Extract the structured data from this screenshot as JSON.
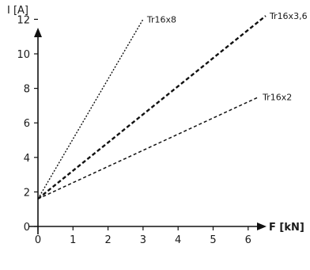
{
  "chart_data": {
    "type": "line",
    "xlabel": "F [kN]",
    "ylabel": "I [A]",
    "xlim": [
      0,
      6.5
    ],
    "ylim": [
      0,
      12.6
    ],
    "x_ticks": [
      "0",
      "1",
      "2",
      "3",
      "4",
      "5",
      "6"
    ],
    "y_ticks": [
      "0",
      "2",
      "4",
      "6",
      "8",
      "10",
      "12"
    ],
    "grid": false,
    "series": [
      {
        "name": "Tr16x8",
        "style": "dotted-thin",
        "points": [
          [
            0,
            1.6
          ],
          [
            3.0,
            12.0
          ]
        ]
      },
      {
        "name": "Tr16x3,6",
        "style": "dashed-bold",
        "points": [
          [
            0,
            1.6
          ],
          [
            6.5,
            12.2
          ]
        ]
      },
      {
        "name": "Tr16x2",
        "style": "dashed-thin",
        "points": [
          [
            0,
            1.6
          ],
          [
            6.3,
            7.5
          ]
        ]
      }
    ]
  }
}
